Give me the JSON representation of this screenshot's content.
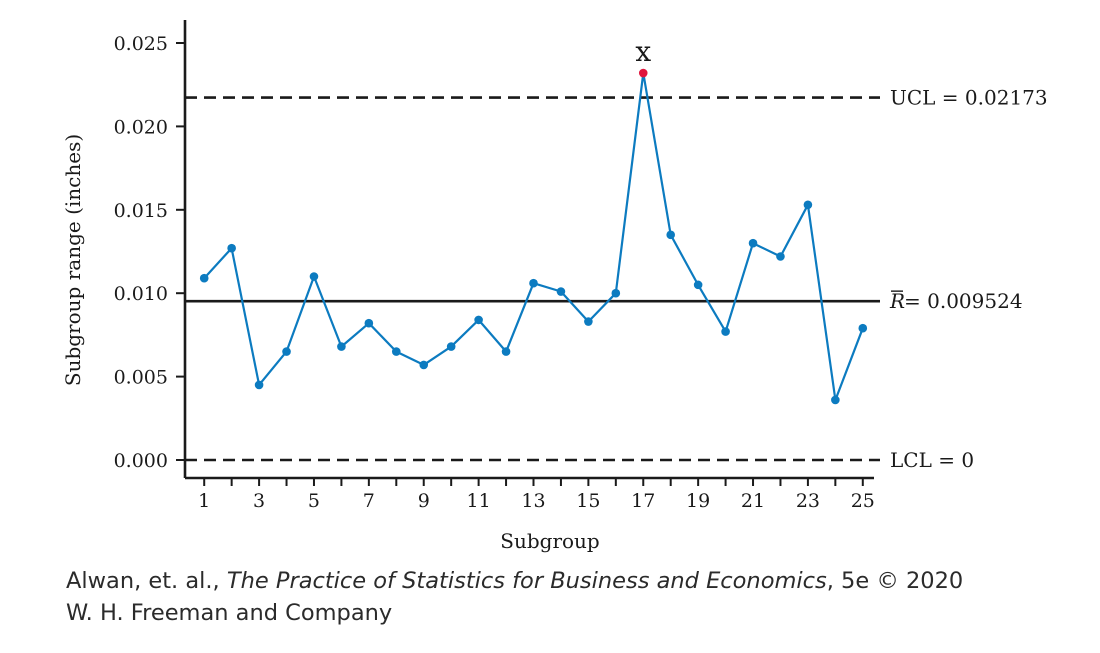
{
  "chart_data": {
    "type": "line",
    "xlabel": "Subgroup",
    "ylabel": "Subgroup range (inches)",
    "x": [
      1,
      2,
      3,
      4,
      5,
      6,
      7,
      8,
      9,
      10,
      11,
      12,
      13,
      14,
      15,
      16,
      17,
      18,
      19,
      20,
      21,
      22,
      23,
      24,
      25
    ],
    "x_ticks": [
      1,
      3,
      5,
      7,
      9,
      11,
      13,
      15,
      17,
      19,
      21,
      23,
      25
    ],
    "xlim": [
      0.3,
      25.7
    ],
    "ylim": [
      0,
      0.0255
    ],
    "y_ticks": [
      0.0,
      0.005,
      0.01,
      0.015,
      0.02,
      0.025
    ],
    "y_tick_labels": [
      "0.000",
      "0.005",
      "0.010",
      "0.015",
      "0.020",
      "0.025"
    ],
    "grid": false,
    "series": [
      {
        "values": [
          0.0109,
          0.0127,
          0.0045,
          0.0065,
          0.011,
          0.0068,
          0.0082,
          0.0065,
          0.0057,
          0.0068,
          0.0084,
          0.0065,
          0.0106,
          0.0101,
          0.0083,
          0.01,
          0.0232,
          0.0135,
          0.0105,
          0.0077,
          0.013,
          0.0122,
          0.0153,
          0.0036,
          0.0079
        ],
        "color": "#0c7bc0"
      }
    ],
    "out_of_control": {
      "x": 17,
      "marker_label": "x",
      "color": "#e0153d"
    },
    "reference_lines": [
      {
        "name": "UCL",
        "value": 0.02173,
        "label": "UCL = 0.02173",
        "style": "dashed"
      },
      {
        "name": "center",
        "value": 0.009524,
        "label_symbol": "R",
        "label_rest": " = 0.009524",
        "style": "solid"
      },
      {
        "name": "LCL",
        "value": 0,
        "label": "LCL = 0",
        "style": "dashed"
      }
    ]
  },
  "credit": {
    "authors": "Alwan, et. al., ",
    "book_title": "The Practice of Statistics for Business and Economics",
    "edition": ", 5e © 2020",
    "publisher": "W. H. Freeman and Company"
  },
  "colors": {
    "line": "#0c7bc0",
    "highlight": "#e0153d",
    "axis": "#1a1a1a"
  }
}
